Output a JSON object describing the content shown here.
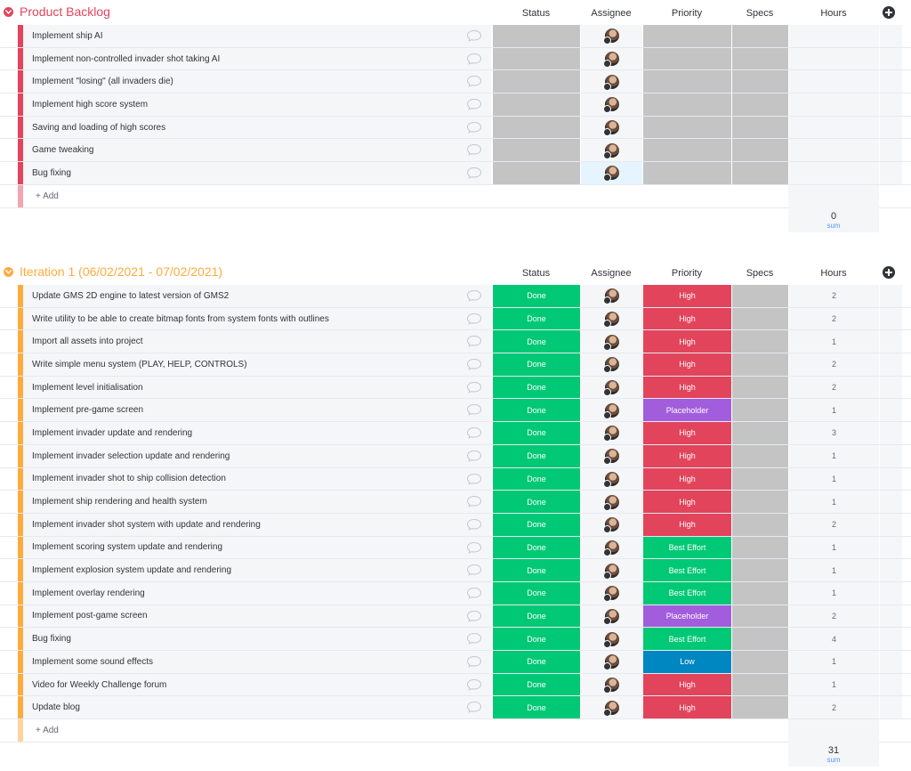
{
  "columns": {
    "status": "Status",
    "assignee": "Assignee",
    "priority": "Priority",
    "specs": "Specs",
    "hours": "Hours"
  },
  "colors": {
    "backlog_accent": "#e2445c",
    "iteration_accent": "#fdab3d",
    "done": "#00c875",
    "high": "#e2445c",
    "placeholder": "#a25ddc",
    "best_effort": "#00c875",
    "low": "#0086c0",
    "empty_cell": "#c4c4c4",
    "selected_cell": "#e5f4ff"
  },
  "backlog": {
    "title": "Product Backlog",
    "add_label": "+ Add",
    "sum_value": "0",
    "sum_label": "sum",
    "items": [
      {
        "name": "Implement ship AI"
      },
      {
        "name": "Implement non-controlled invader shot taking AI"
      },
      {
        "name": "Implement \"losing\" (all invaders die)"
      },
      {
        "name": "Implement high score system"
      },
      {
        "name": "Saving and loading of high scores"
      },
      {
        "name": "Game tweaking"
      },
      {
        "name": "Bug fixing",
        "selected_assignee": true
      }
    ]
  },
  "iteration": {
    "title": "Iteration 1 (06/02/2021 - 07/02/2021)",
    "add_label": "+ Add",
    "sum_value": "31",
    "sum_label": "sum",
    "items": [
      {
        "name": "Update GMS 2D engine to latest version of GMS2",
        "status": "Done",
        "priority": "High",
        "hours": "2"
      },
      {
        "name": "Write utility to be able to create bitmap fonts from system fonts with outlines",
        "status": "Done",
        "priority": "High",
        "hours": "2"
      },
      {
        "name": "Import all assets into project",
        "status": "Done",
        "priority": "High",
        "hours": "1"
      },
      {
        "name": "Write simple menu system (PLAY, HELP, CONTROLS)",
        "status": "Done",
        "priority": "High",
        "hours": "2"
      },
      {
        "name": "Implement level initialisation",
        "status": "Done",
        "priority": "High",
        "hours": "2"
      },
      {
        "name": "Implement pre-game screen",
        "status": "Done",
        "priority": "Placeholder",
        "hours": "1"
      },
      {
        "name": "Implement invader update and rendering",
        "status": "Done",
        "priority": "High",
        "hours": "3"
      },
      {
        "name": "Implement invader selection update and rendering",
        "status": "Done",
        "priority": "High",
        "hours": "1"
      },
      {
        "name": "Implement invader shot to ship collision detection",
        "status": "Done",
        "priority": "High",
        "hours": "1"
      },
      {
        "name": "Implement ship rendering and health system",
        "status": "Done",
        "priority": "High",
        "hours": "1"
      },
      {
        "name": "Implement invader shot system with update and rendering",
        "status": "Done",
        "priority": "High",
        "hours": "2"
      },
      {
        "name": "Implement scoring system update and rendering",
        "status": "Done",
        "priority": "Best Effort",
        "hours": "1"
      },
      {
        "name": "Implement explosion system update and rendering",
        "status": "Done",
        "priority": "Best Effort",
        "hours": "1"
      },
      {
        "name": "Implement overlay rendering",
        "status": "Done",
        "priority": "Best Effort",
        "hours": "1"
      },
      {
        "name": "Implement post-game screen",
        "status": "Done",
        "priority": "Placeholder",
        "hours": "2"
      },
      {
        "name": "Bug fixing",
        "status": "Done",
        "priority": "Best Effort",
        "hours": "4"
      },
      {
        "name": "Implement some sound effects",
        "status": "Done",
        "priority": "Low",
        "hours": "1"
      },
      {
        "name": "Video for Weekly Challenge forum",
        "status": "Done",
        "priority": "High",
        "hours": "1"
      },
      {
        "name": "Update blog",
        "status": "Done",
        "priority": "High",
        "hours": "2"
      }
    ]
  }
}
